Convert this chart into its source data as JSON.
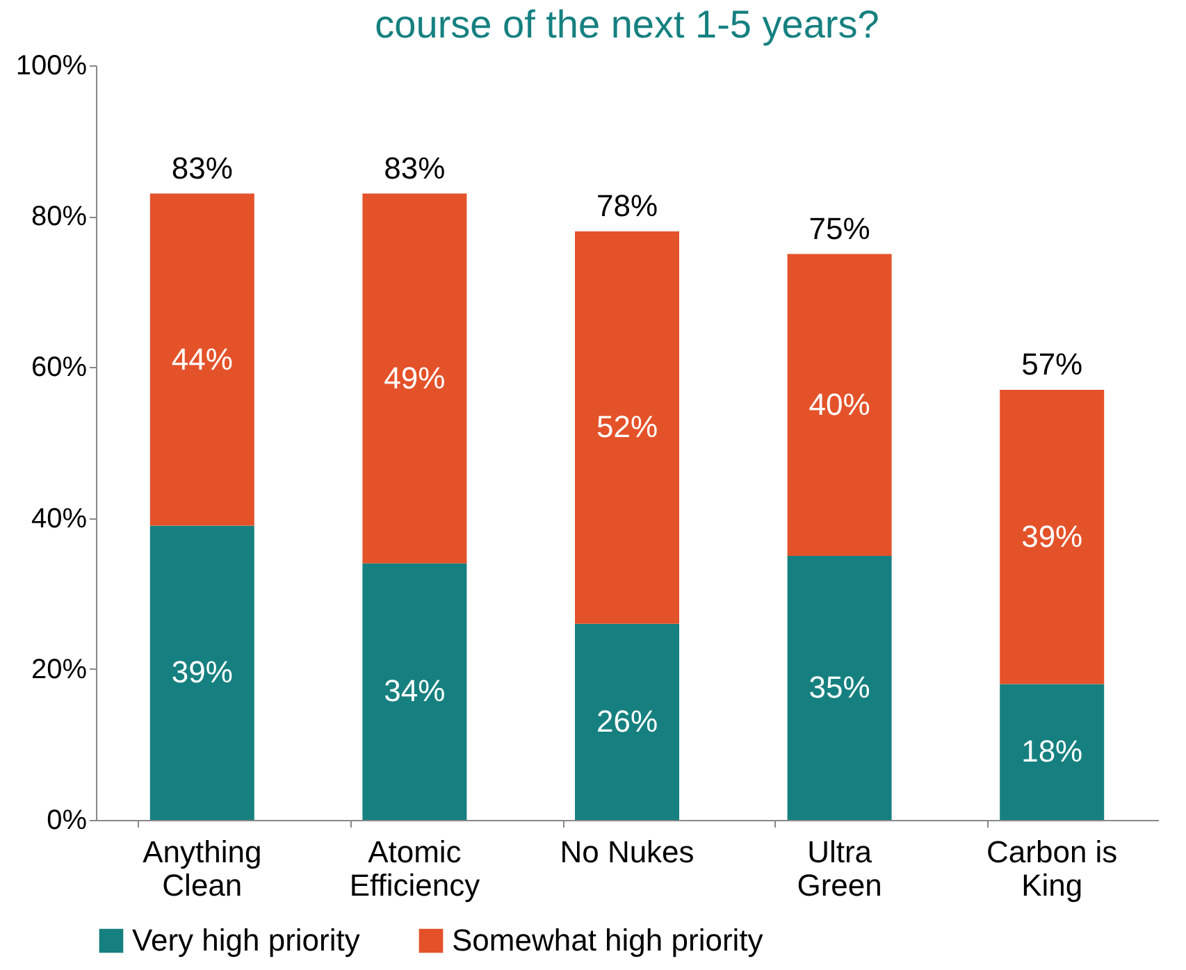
{
  "chart_data": {
    "type": "bar",
    "stacked": true,
    "title": "course of the next 1-5 years?",
    "categories": [
      "Anything\nClean",
      "Atomic\nEfficiency",
      "No Nukes",
      "Ultra\nGreen",
      "Carbon is\nKing"
    ],
    "series": [
      {
        "name": "Very high priority",
        "color": "#168080",
        "values": [
          39,
          34,
          26,
          35,
          18
        ],
        "value_labels": [
          "39%",
          "34%",
          "26%",
          "35%",
          "18%"
        ]
      },
      {
        "name": "Somewhat high priority",
        "color": "#e4522a",
        "values": [
          44,
          49,
          52,
          40,
          39
        ],
        "value_labels": [
          "44%",
          "49%",
          "52%",
          "40%",
          "39%"
        ]
      }
    ],
    "totals": [
      "83%",
      "83%",
      "78%",
      "75%",
      "57%"
    ],
    "ylim": [
      0,
      100
    ],
    "yticks": [
      {
        "value": 0,
        "label": "0%"
      },
      {
        "value": 20,
        "label": "20%"
      },
      {
        "value": 40,
        "label": "40%"
      },
      {
        "value": 60,
        "label": "60%"
      },
      {
        "value": 80,
        "label": "80%"
      },
      {
        "value": 100,
        "label": "100%"
      }
    ],
    "grid": false,
    "legend": "bottom"
  }
}
